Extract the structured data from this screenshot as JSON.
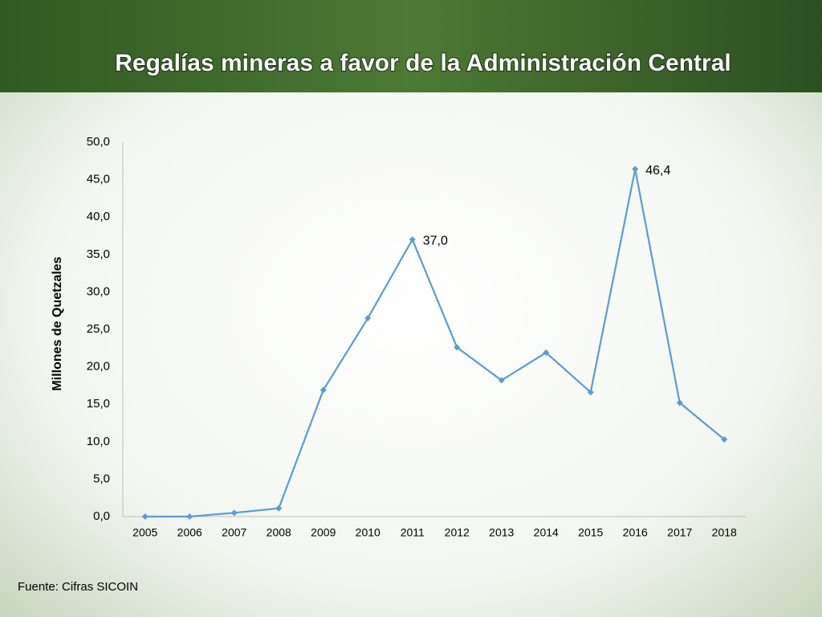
{
  "chart_data": {
    "type": "line",
    "title": "Regalías mineras a favor de la Administración Central",
    "y_label": "Millones de Quetzales",
    "source": "Fuente: Cifras SICOIN",
    "categories": [
      "2005",
      "2006",
      "2007",
      "2008",
      "2009",
      "2010",
      "2011",
      "2012",
      "2013",
      "2014",
      "2015",
      "2016",
      "2017",
      "2018"
    ],
    "series": [
      {
        "name": "Regalías",
        "color": "#5b9bd5",
        "values": [
          0.0,
          0.0,
          0.5,
          1.1,
          16.9,
          26.5,
          37.0,
          22.6,
          18.2,
          21.9,
          16.6,
          46.4,
          15.2,
          10.3
        ],
        "value_labels": [
          null,
          null,
          null,
          null,
          null,
          null,
          "37,0",
          null,
          null,
          null,
          null,
          "46,4",
          null,
          null
        ]
      }
    ],
    "ylim": [
      0,
      50
    ],
    "yticks": [
      {
        "value": 0,
        "label": "0,0"
      },
      {
        "value": 5,
        "label": "5,0"
      },
      {
        "value": 10,
        "label": "10,0"
      },
      {
        "value": 15,
        "label": "15,0"
      },
      {
        "value": 20,
        "label": "20,0"
      },
      {
        "value": 25,
        "label": "25,0"
      },
      {
        "value": 30,
        "label": "30,0"
      },
      {
        "value": 35,
        "label": "35,0"
      },
      {
        "value": 40,
        "label": "40,0"
      },
      {
        "value": 45,
        "label": "45,0"
      },
      {
        "value": 50,
        "label": "50,0"
      }
    ],
    "grid": false
  }
}
